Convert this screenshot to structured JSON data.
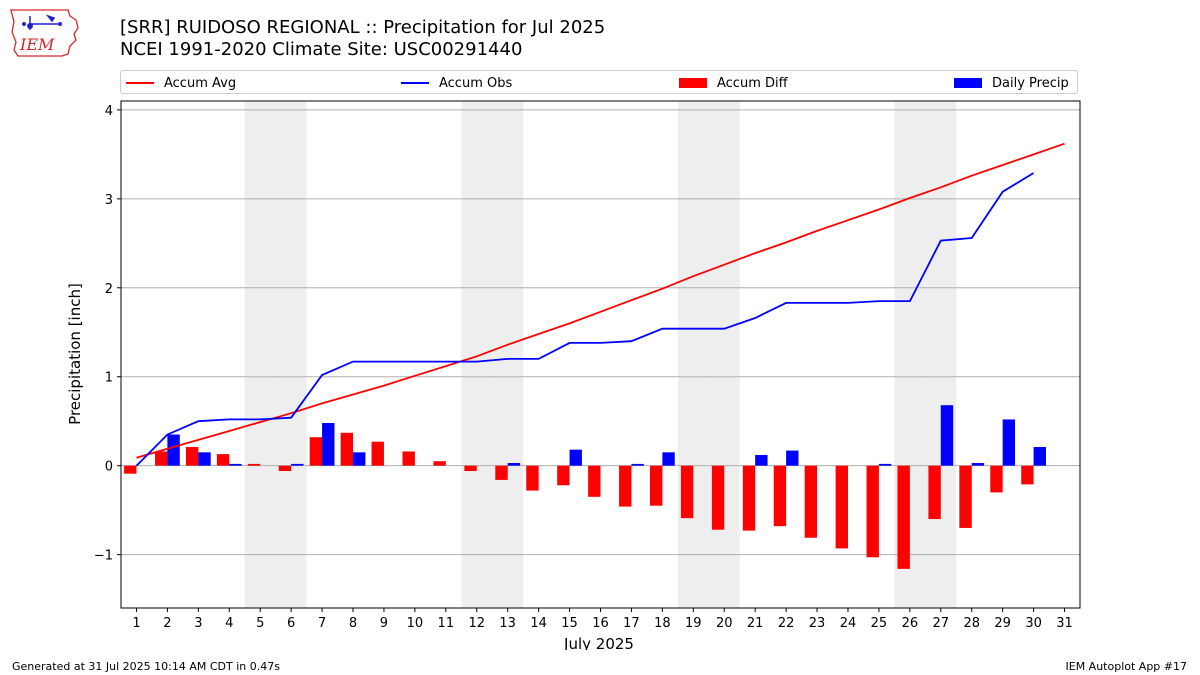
{
  "logo": {
    "text": "IEM",
    "color": "#d62728",
    "accent": "#1f1fd0"
  },
  "header": {
    "title": "[SRR] RUIDOSO REGIONAL :: Precipitation for Jul 2025",
    "subtitle": "NCEI 1991-2020 Climate Site: USC00291440"
  },
  "legend": {
    "accum_avg": "Accum Avg",
    "accum_obs": "Accum Obs",
    "accum_diff": "Accum Diff",
    "daily_precip": "Daily Precip"
  },
  "colors": {
    "accum_avg": "#ff0000",
    "accum_obs": "#0000ff",
    "accum_diff": "#ff0000",
    "daily_precip": "#0000ff",
    "weekend_band": "#eeeeee",
    "grid": "#b0b0b0"
  },
  "chart_data": {
    "type": "bar",
    "xlabel": "July 2025",
    "ylabel": "Precipitation [inch]",
    "xlim": [
      0.5,
      31.5
    ],
    "ylim": [
      -1.6,
      4.1
    ],
    "yticks": [
      -1,
      0,
      1,
      2,
      3,
      4
    ],
    "ytick_labels": [
      "−1",
      "0",
      "1",
      "2",
      "3",
      "4"
    ],
    "grid": "horizontal",
    "legend_position": "top",
    "x": [
      1,
      2,
      3,
      4,
      5,
      6,
      7,
      8,
      9,
      10,
      11,
      12,
      13,
      14,
      15,
      16,
      17,
      18,
      19,
      20,
      21,
      22,
      23,
      24,
      25,
      26,
      27,
      28,
      29,
      30,
      31
    ],
    "weekend_days": [
      5,
      6,
      12,
      13,
      19,
      20,
      26,
      27
    ],
    "series": [
      {
        "name": "Accum Avg",
        "kind": "line",
        "values": [
          0.09,
          0.19,
          0.29,
          0.39,
          0.49,
          0.59,
          0.7,
          0.8,
          0.9,
          1.01,
          1.12,
          1.23,
          1.36,
          1.48,
          1.6,
          1.73,
          1.86,
          1.99,
          2.13,
          2.26,
          2.39,
          2.51,
          2.64,
          2.76,
          2.88,
          3.01,
          3.13,
          3.26,
          3.38,
          3.5,
          3.62
        ]
      },
      {
        "name": "Accum Obs",
        "kind": "line",
        "values": [
          0.0,
          0.35,
          0.5,
          0.52,
          0.52,
          0.54,
          1.02,
          1.17,
          1.17,
          1.17,
          1.17,
          1.17,
          1.2,
          1.2,
          1.38,
          1.38,
          1.4,
          1.54,
          1.54,
          1.54,
          1.66,
          1.83,
          1.83,
          1.83,
          1.85,
          1.85,
          2.53,
          2.56,
          3.08,
          3.29,
          null
        ]
      },
      {
        "name": "Accum Diff",
        "kind": "bar",
        "values": [
          -0.09,
          0.16,
          0.21,
          0.13,
          0.02,
          -0.06,
          0.32,
          0.37,
          0.27,
          0.16,
          0.05,
          -0.06,
          -0.16,
          -0.28,
          -0.22,
          -0.35,
          -0.46,
          -0.45,
          -0.59,
          -0.72,
          -0.73,
          -0.68,
          -0.81,
          -0.93,
          -1.03,
          -1.16,
          -0.6,
          -0.7,
          -0.3,
          -0.21,
          null
        ]
      },
      {
        "name": "Daily Precip",
        "kind": "bar",
        "values": [
          0.0,
          0.35,
          0.15,
          0.02,
          0.0,
          0.02,
          0.48,
          0.15,
          0.0,
          0.0,
          0.0,
          0.0,
          0.03,
          0.0,
          0.18,
          0.0,
          0.02,
          0.15,
          0.0,
          0.0,
          0.12,
          0.17,
          0.0,
          0.0,
          0.02,
          0.0,
          0.68,
          0.03,
          0.52,
          0.21,
          null
        ]
      }
    ]
  },
  "footer": {
    "left": "Generated at 31 Jul 2025 10:14 AM CDT in 0.47s",
    "right": "IEM Autoplot App #17"
  }
}
